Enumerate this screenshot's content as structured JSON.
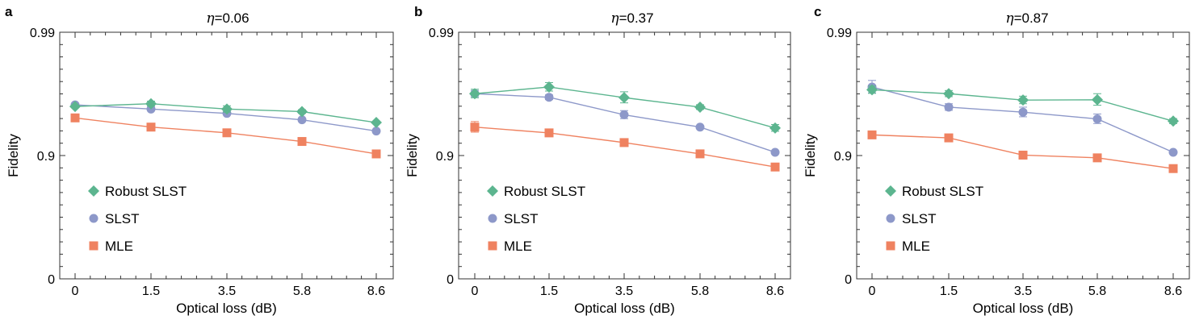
{
  "chart_data": [
    {
      "type": "line",
      "panel": "a",
      "title_symbol": "η",
      "title_value": "=0.06",
      "xlabel": "Optical loss (dB)",
      "ylabel": "Fidelity",
      "categories": [
        "0",
        "1.5",
        "3.5",
        "5.8",
        "8.6"
      ],
      "yticks": [
        "0",
        "0.9",
        "0.99"
      ],
      "legend_position": "bottom-left",
      "series": [
        {
          "name": "Robust SLST",
          "marker": "diamond",
          "color": "#5cb58f",
          "values": [
            0.96,
            0.962,
            0.958,
            0.956,
            0.946
          ],
          "errors": [
            0.001,
            0.0018,
            0.0025,
            0.0015,
            0.0013
          ]
        },
        {
          "name": "SLST",
          "marker": "circle",
          "color": "#8d98c9",
          "values": [
            0.9612,
            0.958,
            0.9545,
            0.9487,
            0.9367
          ],
          "errors": [
            0.0012,
            0.0008,
            0.0012,
            0.0012,
            0.001
          ]
        },
        {
          "name": "MLE",
          "marker": "square",
          "color": "#ef8260",
          "values": [
            0.9505,
            0.9412,
            0.9346,
            0.9231,
            0.903
          ],
          "errors": [
            0.0025,
            0.0016,
            0.0025,
            0.0012,
            0.0015
          ]
        }
      ]
    },
    {
      "type": "line",
      "panel": "b",
      "title_symbol": "η",
      "title_value": "=0.37",
      "xlabel": "Optical loss (dB)",
      "ylabel": "Fidelity",
      "categories": [
        "0",
        "1.5",
        "3.5",
        "5.8",
        "8.6"
      ],
      "yticks": [
        "0",
        "0.9",
        "0.99"
      ],
      "legend_position": "bottom-left",
      "series": [
        {
          "name": "Robust SLST",
          "marker": "diamond",
          "color": "#5cb58f",
          "values": [
            0.9685,
            0.9722,
            0.9661,
            0.9595,
            0.9402
          ],
          "errors": [
            0.0025,
            0.0022,
            0.0035,
            0.0018,
            0.0038
          ]
        },
        {
          "name": "SLST",
          "marker": "circle",
          "color": "#8d98c9",
          "values": [
            0.9685,
            0.9663,
            0.9533,
            0.9412,
            0.9059
          ],
          "errors": [
            0.0018,
            0.0015,
            0.0035,
            0.0015,
            0.0012
          ]
        },
        {
          "name": "MLE",
          "marker": "square",
          "color": "#ef8260",
          "values": [
            0.9412,
            0.9345,
            0.9215,
            0.9031,
            0.8761
          ],
          "errors": [
            0.0058,
            0.0018,
            0.0022,
            0.0012,
            0.0012
          ]
        }
      ]
    },
    {
      "type": "line",
      "panel": "c",
      "title_symbol": "η",
      "title_value": "=0.87",
      "xlabel": "Optical loss (dB)",
      "ylabel": "Fidelity",
      "categories": [
        "0",
        "1.5",
        "3.5",
        "5.8",
        "8.6"
      ],
      "yticks": [
        "0",
        "0.9",
        "0.99"
      ],
      "legend_position": "bottom-left",
      "series": [
        {
          "name": "Robust SLST",
          "marker": "diamond",
          "color": "#5cb58f",
          "values": [
            0.9707,
            0.9685,
            0.9645,
            0.9647,
            0.9474
          ],
          "errors": [
            0.002,
            0.0018,
            0.0025,
            0.0038,
            0.0025
          ]
        },
        {
          "name": "SLST",
          "marker": "circle",
          "color": "#8d98c9",
          "values": [
            0.9722,
            0.9595,
            0.9555,
            0.9495,
            0.9059
          ],
          "errors": [
            0.0032,
            0.0025,
            0.004,
            0.0045,
            0.0012
          ]
        },
        {
          "name": "MLE",
          "marker": "square",
          "color": "#ef8260",
          "values": [
            0.932,
            0.9281,
            0.9008,
            0.8956,
            0.8724
          ],
          "errors": [
            0.003,
            0.0025,
            0.0025,
            0.0012,
            0.0012
          ]
        }
      ]
    }
  ]
}
